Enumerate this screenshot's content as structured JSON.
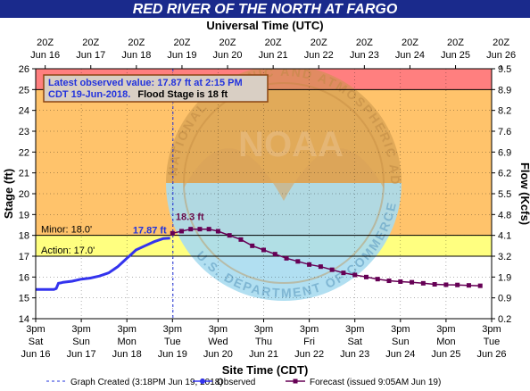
{
  "colors": {
    "title_bar": "#1a2a8c",
    "major_band": "#ff7f7f",
    "moderate_band": "#ffc36b",
    "minor_band": "#ffff80",
    "observed": "#3333ee",
    "forecast": "#660055",
    "box_border": "#8b4513",
    "box_fill": "#d9cfc4",
    "box_blue_text": "#2233dd"
  },
  "chart_data": {
    "type": "line",
    "title": "RED RIVER OF THE NORTH AT FARGO",
    "top_axis_label": "Universal Time (UTC)",
    "top_ticks": [
      {
        "hour": "20Z",
        "date": "Jun 16"
      },
      {
        "hour": "20Z",
        "date": "Jun 17"
      },
      {
        "hour": "20Z",
        "date": "Jun 18"
      },
      {
        "hour": "20Z",
        "date": "Jun 19"
      },
      {
        "hour": "20Z",
        "date": "Jun 20"
      },
      {
        "hour": "20Z",
        "date": "Jun 21"
      },
      {
        "hour": "20Z",
        "date": "Jun 22"
      },
      {
        "hour": "20Z",
        "date": "Jun 23"
      },
      {
        "hour": "20Z",
        "date": "Jun 24"
      },
      {
        "hour": "20Z",
        "date": "Jun 25"
      },
      {
        "hour": "20Z",
        "date": "Jun 26"
      }
    ],
    "xlabel": "Site Time (CDT)",
    "bottom_ticks": [
      {
        "time": "3pm",
        "day": "Sat",
        "date": "Jun 16"
      },
      {
        "time": "3pm",
        "day": "Sun",
        "date": "Jun 17"
      },
      {
        "time": "3pm",
        "day": "Mon",
        "date": "Jun 18"
      },
      {
        "time": "3pm",
        "day": "Tue",
        "date": "Jun 19"
      },
      {
        "time": "3pm",
        "day": "Wed",
        "date": "Jun 20"
      },
      {
        "time": "3pm",
        "day": "Thu",
        "date": "Jun 21"
      },
      {
        "time": "3pm",
        "day": "Fri",
        "date": "Jun 22"
      },
      {
        "time": "3pm",
        "day": "Sat",
        "date": "Jun 23"
      },
      {
        "time": "3pm",
        "day": "Sun",
        "date": "Jun 24"
      },
      {
        "time": "3pm",
        "day": "Mon",
        "date": "Jun 25"
      },
      {
        "time": "3pm",
        "day": "Tue",
        "date": "Jun 26"
      }
    ],
    "ylabel": "Stage (ft)",
    "ylim": [
      14,
      26
    ],
    "yticks": [
      14,
      15,
      16,
      17,
      18,
      19,
      20,
      21,
      22,
      23,
      24,
      25,
      26
    ],
    "y2label": "Flow (Kcfs)",
    "y2_ticks": [
      {
        "stage": 14,
        "label": "0.2"
      },
      {
        "stage": 15,
        "label": "0.9"
      },
      {
        "stage": 16,
        "label": "1.9"
      },
      {
        "stage": 17,
        "label": "3.2"
      },
      {
        "stage": 18,
        "label": "4.1"
      },
      {
        "stage": 19,
        "label": "4.8"
      },
      {
        "stage": 20,
        "label": "5.5"
      },
      {
        "stage": 21,
        "label": "6.2"
      },
      {
        "stage": 22,
        "label": "6.9"
      },
      {
        "stage": 23,
        "label": "7.6"
      },
      {
        "stage": 24,
        "label": "8.2"
      },
      {
        "stage": 25,
        "label": "8.9"
      },
      {
        "stage": 26,
        "label": "9.5"
      }
    ],
    "x_units": "days after Jun 16 3pm CDT",
    "xlim": [
      0,
      10
    ],
    "flood_bands": [
      {
        "name": "major",
        "from": 25,
        "to": 26
      },
      {
        "name": "moderate",
        "from": 18,
        "to": 25
      },
      {
        "name": "minor",
        "from": 17,
        "to": 18
      }
    ],
    "thresholds": [
      {
        "label": "Minor: 18.0'",
        "stage": 18.0
      },
      {
        "label": "Action: 17.0'",
        "stage": 17.0
      },
      {
        "label": "",
        "stage": 25.0
      }
    ],
    "graph_created_x": 3.01,
    "series": [
      {
        "name": "Observed",
        "x": [
          0,
          0.2,
          0.4,
          0.45,
          0.5,
          0.55,
          0.6,
          0.8,
          1.0,
          1.2,
          1.4,
          1.6,
          1.8,
          1.9,
          2.0,
          2.1,
          2.2,
          2.4,
          2.6,
          2.8,
          2.95
        ],
        "y": [
          15.4,
          15.4,
          15.4,
          15.45,
          15.7,
          15.72,
          15.75,
          15.8,
          15.9,
          15.95,
          16.05,
          16.2,
          16.5,
          16.7,
          16.9,
          17.1,
          17.3,
          17.5,
          17.7,
          17.85,
          17.87
        ]
      },
      {
        "name": "Forecast",
        "x": [
          3.0,
          3.2,
          3.4,
          3.6,
          3.8,
          4.0,
          4.25,
          4.5,
          4.75,
          5.0,
          5.25,
          5.5,
          5.75,
          6.0,
          6.25,
          6.5,
          6.75,
          7.0,
          7.25,
          7.5,
          7.75,
          8.0,
          8.25,
          8.5,
          8.75,
          9.0,
          9.25,
          9.5,
          9.75
        ],
        "y": [
          18.1,
          18.2,
          18.3,
          18.3,
          18.3,
          18.2,
          18.0,
          17.8,
          17.5,
          17.3,
          17.1,
          16.9,
          16.75,
          16.6,
          16.5,
          16.35,
          16.2,
          16.1,
          16.0,
          15.9,
          15.82,
          15.78,
          15.75,
          15.7,
          15.65,
          15.63,
          15.62,
          15.6,
          15.58
        ]
      }
    ],
    "annotations": [
      {
        "text": "17.87 ft",
        "series": "Observed",
        "x": 2.95,
        "y": 17.87
      },
      {
        "text": "18.3 ft",
        "series": "Forecast",
        "x": 3.4,
        "y": 18.3
      }
    ],
    "info_box": {
      "line1": "Latest observed value: 17.87 ft at 2:15 PM",
      "line2": "CDT 19-Jun-2018.",
      "line2b": "Flood Stage is 18 ft"
    },
    "legend": [
      {
        "style": "dashed",
        "label": "Graph Created (3:18PM Jun 19, 2018)"
      },
      {
        "style": "observed",
        "label": "Observed"
      },
      {
        "style": "forecast",
        "label": "Forecast (issued 9:05AM Jun 19)"
      }
    ],
    "watermark": {
      "title": "NOAA",
      "left_text": "NATIONAL OCEANIC",
      "top_text": "AND ATMOSPHERIC ADMINISTRATION",
      "bottom_text": "U.S. DEPARTMENT OF COMMERCE"
    }
  }
}
